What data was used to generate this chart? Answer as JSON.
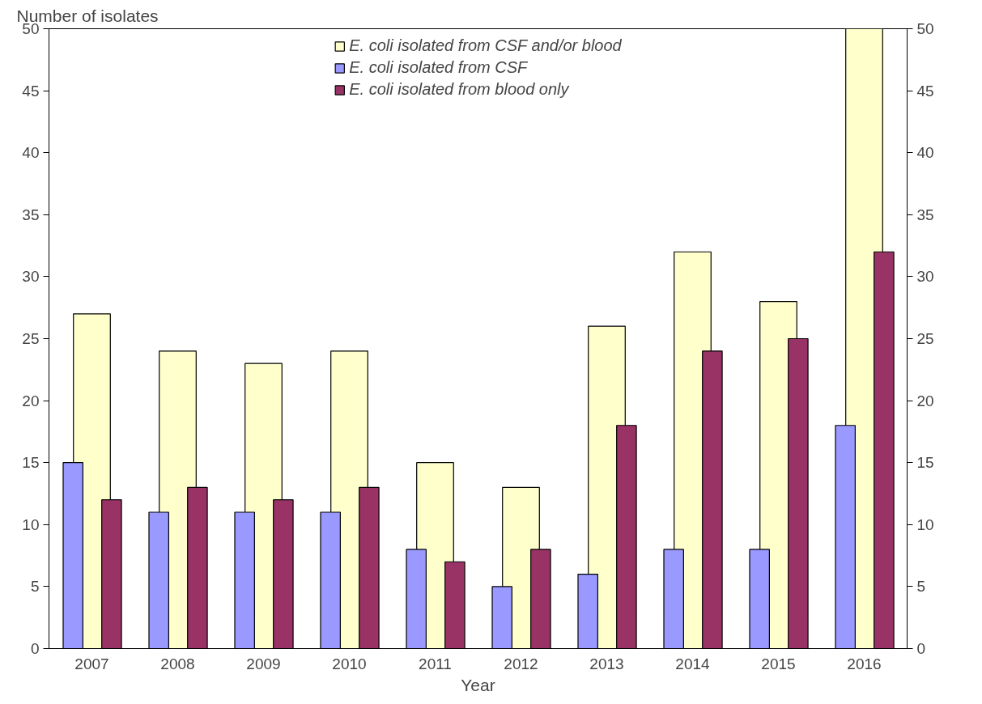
{
  "chart_data": {
    "type": "bar",
    "xlabel": "Year",
    "ylabel": "Number of isolates",
    "categories": [
      "2007",
      "2008",
      "2009",
      "2010",
      "2011",
      "2012",
      "2013",
      "2014",
      "2015",
      "2016"
    ],
    "series": [
      {
        "name": "E. coli isolated from CSF and/or blood",
        "color": "#ffffcc",
        "values": [
          27,
          24,
          23,
          24,
          15,
          13,
          26,
          32,
          28,
          50
        ]
      },
      {
        "name": "E. coli isolated from CSF",
        "color": "#9999ff",
        "values": [
          15,
          11,
          11,
          11,
          8,
          5,
          6,
          8,
          8,
          18
        ]
      },
      {
        "name": "E. coli isolated from blood only",
        "color": "#993366",
        "values": [
          12,
          13,
          12,
          13,
          7,
          8,
          18,
          24,
          25,
          32
        ]
      }
    ],
    "ylim": [
      0,
      50
    ],
    "yticks": [
      0,
      5,
      10,
      15,
      20,
      25,
      30,
      35,
      40,
      45,
      50
    ],
    "y2lim": [
      0,
      50
    ],
    "y2ticks": [
      0,
      5,
      10,
      15,
      20,
      25,
      30,
      35,
      40,
      45,
      50
    ],
    "grid": false,
    "legend": "top"
  }
}
